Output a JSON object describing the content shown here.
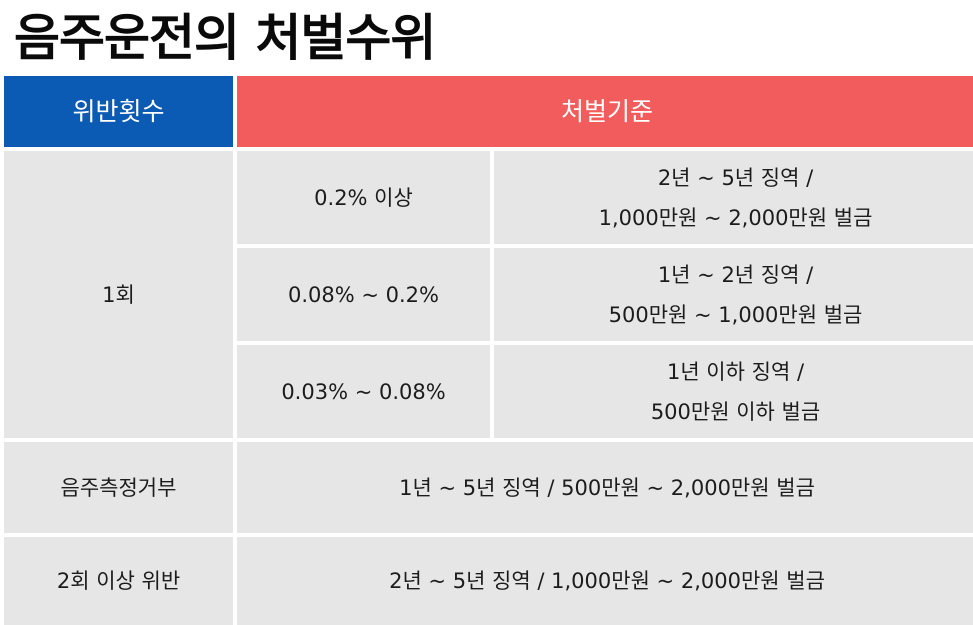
{
  "title": "음주운전의 처벌수위",
  "header": {
    "count_label": "위반횟수",
    "criteria_label": "처벌기준"
  },
  "rows": {
    "first": {
      "count": "1회",
      "levels": [
        {
          "bac": "0.2% 이상",
          "line1": "2년 ~ 5년 징역 /",
          "line2": "1,000만원 ~ 2,000만원 벌금"
        },
        {
          "bac": "0.08% ~ 0.2%",
          "line1": "1년 ~ 2년 징역 /",
          "line2": "500만원 ~ 1,000만원 벌금"
        },
        {
          "bac": "0.03% ~ 0.08%",
          "line1": "1년 이하 징역 /",
          "line2": "500만원 이하 벌금"
        }
      ]
    },
    "refusal": {
      "label": "음주측정거부",
      "penalty": "1년 ~ 5년 징역 / 500만원 ~ 2,000만원 벌금"
    },
    "repeat": {
      "label": "2회 이상 위반",
      "penalty": "2년 ~ 5년 징역 / 1,000만원 ~ 2,000만원 벌금"
    }
  }
}
